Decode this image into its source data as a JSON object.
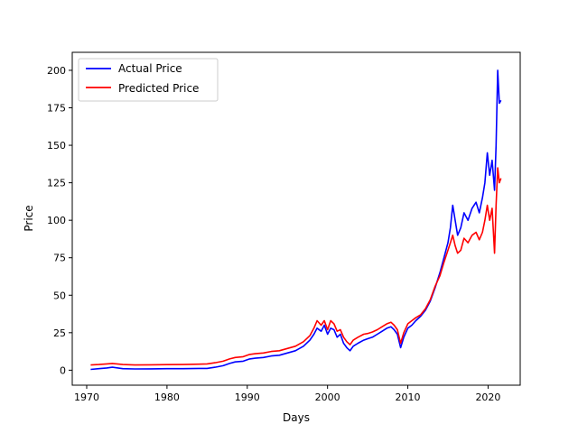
{
  "chart_data": {
    "type": "line",
    "title": "",
    "xlabel": "Days",
    "ylabel": "Price",
    "xlim": [
      1968.2,
      2024.0
    ],
    "ylim": [
      -10,
      212
    ],
    "xticks": [
      1970,
      1980,
      1990,
      2000,
      2010,
      2020
    ],
    "yticks": [
      0,
      25,
      50,
      75,
      100,
      125,
      150,
      175,
      200
    ],
    "grid": false,
    "legend": "top-left",
    "series": [
      {
        "name": "Actual Price",
        "color": "#0000ff",
        "x": [
          1970.5,
          1971.5,
          1972.5,
          1973.2,
          1974.5,
          1976,
          1978,
          1980,
          1982,
          1984,
          1985,
          1986,
          1987,
          1987.8,
          1988.5,
          1989.5,
          1990.3,
          1991,
          1992,
          1993,
          1994,
          1995,
          1996,
          1997,
          1997.8,
          1998.3,
          1998.7,
          1999.2,
          1999.6,
          2000.0,
          2000.4,
          2000.8,
          2001.2,
          2001.6,
          2002.0,
          2002.4,
          2002.8,
          2003.2,
          2003.8,
          2004.5,
          2005.0,
          2005.6,
          2006.2,
          2006.8,
          2007.4,
          2007.9,
          2008.3,
          2008.7,
          2009.1,
          2009.5,
          2010.0,
          2010.5,
          2011.0,
          2011.6,
          2012.2,
          2012.8,
          2013.4,
          2014.0,
          2014.5,
          2015.0,
          2015.3,
          2015.6,
          2015.9,
          2016.2,
          2016.6,
          2017.0,
          2017.5,
          2018.0,
          2018.5,
          2018.9,
          2019.3,
          2019.6,
          2019.9,
          2020.2,
          2020.5,
          2020.8,
          2021.0,
          2021.2,
          2021.4,
          2021.6
        ],
        "values": [
          0.5,
          1.0,
          1.5,
          2.0,
          1.0,
          0.8,
          0.9,
          1.0,
          1.0,
          1.2,
          1.2,
          2.0,
          3.0,
          4.5,
          5.5,
          6.0,
          7.5,
          8.0,
          8.5,
          9.5,
          10.0,
          11.5,
          13.0,
          16.0,
          20.0,
          24.0,
          28.0,
          26.0,
          30.0,
          24.0,
          28.0,
          27.0,
          22.0,
          24.0,
          18.0,
          15.0,
          13.0,
          16.0,
          18.0,
          20.0,
          21.0,
          22.0,
          24.0,
          26.0,
          28.0,
          29.0,
          27.0,
          24.0,
          15.0,
          22.0,
          28.0,
          30.0,
          33.0,
          36.0,
          40.0,
          46.0,
          55.0,
          65.0,
          75.0,
          85.0,
          95.0,
          110.0,
          100.0,
          90.0,
          95.0,
          105.0,
          100.0,
          108.0,
          112.0,
          105.0,
          115.0,
          125.0,
          145.0,
          130.0,
          140.0,
          120.0,
          150.0,
          200.0,
          178.0,
          180.0
        ]
      },
      {
        "name": "Predicted Price",
        "color": "#ff0000",
        "x": [
          1970.5,
          1971.5,
          1972.5,
          1973.2,
          1974.5,
          1976,
          1978,
          1980,
          1982,
          1984,
          1985,
          1986,
          1987,
          1987.8,
          1988.5,
          1989.5,
          1990.3,
          1991,
          1992,
          1993,
          1994,
          1995,
          1996,
          1997,
          1997.8,
          1998.3,
          1998.7,
          1999.2,
          1999.6,
          2000.0,
          2000.4,
          2000.8,
          2001.2,
          2001.6,
          2002.0,
          2002.4,
          2002.8,
          2003.2,
          2003.8,
          2004.5,
          2005.0,
          2005.6,
          2006.2,
          2006.8,
          2007.4,
          2007.9,
          2008.3,
          2008.7,
          2009.1,
          2009.5,
          2010.0,
          2010.5,
          2011.0,
          2011.6,
          2012.2,
          2012.8,
          2013.4,
          2014.0,
          2014.5,
          2015.0,
          2015.3,
          2015.6,
          2015.9,
          2016.2,
          2016.6,
          2017.0,
          2017.5,
          2018.0,
          2018.5,
          2018.9,
          2019.3,
          2019.6,
          2019.9,
          2020.2,
          2020.5,
          2020.8,
          2021.0,
          2021.2,
          2021.4,
          2021.6
        ],
        "values": [
          3.5,
          3.8,
          4.2,
          4.5,
          3.8,
          3.5,
          3.6,
          3.7,
          3.8,
          4.0,
          4.2,
          5.0,
          6.0,
          7.5,
          8.5,
          9.0,
          10.5,
          11.0,
          11.5,
          12.5,
          13.0,
          14.5,
          16.0,
          19.0,
          23.0,
          28.0,
          33.0,
          30.0,
          33.0,
          27.0,
          33.0,
          31.0,
          26.0,
          27.0,
          22.0,
          19.0,
          17.0,
          20.0,
          22.0,
          24.0,
          24.5,
          25.5,
          27.0,
          29.0,
          31.0,
          32.0,
          30.0,
          27.0,
          18.0,
          25.0,
          31.0,
          33.0,
          35.0,
          37.0,
          41.0,
          47.0,
          56.0,
          63.0,
          72.0,
          80.0,
          85.0,
          90.0,
          83.0,
          78.0,
          80.0,
          88.0,
          85.0,
          90.0,
          92.0,
          87.0,
          92.0,
          100.0,
          110.0,
          100.0,
          108.0,
          78.0,
          110.0,
          135.0,
          125.0,
          128.0
        ]
      }
    ]
  }
}
